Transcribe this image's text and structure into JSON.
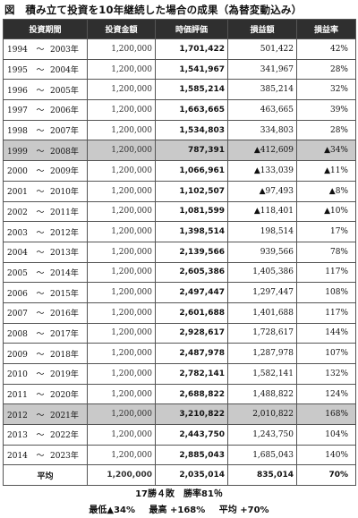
{
  "title": "図　積み立て投資を10年継続した場合の成果（為替変動込み）",
  "headers": [
    "投資期間",
    "投資金額",
    "時価評価",
    "損益額",
    "損益率"
  ],
  "rows": [
    {
      "start": "1994",
      "tilde": "～",
      "end": "2003年",
      "invest": "1,200,000",
      "value": "1,701,422",
      "gain": "501,422",
      "rate": "42%",
      "highlight": false
    },
    {
      "start": "1995",
      "tilde": "～",
      "end": "2004年",
      "invest": "1,200,000",
      "value": "1,541,967",
      "gain": "341,967",
      "rate": "28%",
      "highlight": false
    },
    {
      "start": "1996",
      "tilde": "～",
      "end": "2005年",
      "invest": "1,200,000",
      "value": "1,585,214",
      "gain": "385,214",
      "rate": "32%",
      "highlight": false
    },
    {
      "start": "1997",
      "tilde": "～",
      "end": "2006年",
      "invest": "1,200,000",
      "value": "1,663,665",
      "gain": "463,665",
      "rate": "39%",
      "highlight": false
    },
    {
      "start": "1998",
      "tilde": "～",
      "end": "2007年",
      "invest": "1,200,000",
      "value": "1,534,803",
      "gain": "334,803",
      "rate": "28%",
      "highlight": false
    },
    {
      "start": "1999",
      "tilde": "～",
      "end": "2008年",
      "invest": "1,200,000",
      "value": "787,391",
      "gain": "▲412,609",
      "rate": "▲34%",
      "highlight": true
    },
    {
      "start": "2000",
      "tilde": "～",
      "end": "2009年",
      "invest": "1,200,000",
      "value": "1,066,961",
      "gain": "▲133,039",
      "rate": "▲11%",
      "highlight": false
    },
    {
      "start": "2001",
      "tilde": "～",
      "end": "2010年",
      "invest": "1,200,000",
      "value": "1,102,507",
      "gain": "▲97,493",
      "rate": "▲8%",
      "highlight": false
    },
    {
      "start": "2002",
      "tilde": "～",
      "end": "2011年",
      "invest": "1,200,000",
      "value": "1,081,599",
      "gain": "▲118,401",
      "rate": "▲10%",
      "highlight": false
    },
    {
      "start": "2003",
      "tilde": "～",
      "end": "2012年",
      "invest": "1,200,000",
      "value": "1,398,514",
      "gain": "198,514",
      "rate": "17%",
      "highlight": false
    },
    {
      "start": "2004",
      "tilde": "～",
      "end": "2013年",
      "invest": "1,200,000",
      "value": "2,139,566",
      "gain": "939,566",
      "rate": "78%",
      "highlight": false
    },
    {
      "start": "2005",
      "tilde": "～",
      "end": "2014年",
      "invest": "1,200,000",
      "value": "2,605,386",
      "gain": "1,405,386",
      "rate": "117%",
      "highlight": false
    },
    {
      "start": "2006",
      "tilde": "～",
      "end": "2015年",
      "invest": "1,200,000",
      "value": "2,497,447",
      "gain": "1,297,447",
      "rate": "108%",
      "highlight": false
    },
    {
      "start": "2007",
      "tilde": "～",
      "end": "2016年",
      "invest": "1,200,000",
      "value": "2,601,688",
      "gain": "1,401,688",
      "rate": "117%",
      "highlight": false
    },
    {
      "start": "2008",
      "tilde": "～",
      "end": "2017年",
      "invest": "1,200,000",
      "value": "2,928,617",
      "gain": "1,728,617",
      "rate": "144%",
      "highlight": false
    },
    {
      "start": "2009",
      "tilde": "～",
      "end": "2018年",
      "invest": "1,200,000",
      "value": "2,487,978",
      "gain": "1,287,978",
      "rate": "107%",
      "highlight": false
    },
    {
      "start": "2010",
      "tilde": "～",
      "end": "2019年",
      "invest": "1,200,000",
      "value": "2,782,141",
      "gain": "1,582,141",
      "rate": "132%",
      "highlight": false
    },
    {
      "start": "2011",
      "tilde": "～",
      "end": "2020年",
      "invest": "1,200,000",
      "value": "2,688,822",
      "gain": "1,488,822",
      "rate": "124%",
      "highlight": false
    },
    {
      "start": "2012",
      "tilde": "～",
      "end": "2021年",
      "invest": "1,200,000",
      "value": "3,210,822",
      "gain": "2,010,822",
      "rate": "168%",
      "highlight": true
    },
    {
      "start": "2013",
      "tilde": "～",
      "end": "2022年",
      "invest": "1,200,000",
      "value": "2,443,750",
      "gain": "1,243,750",
      "rate": "104%",
      "highlight": false
    },
    {
      "start": "2014",
      "tilde": "～",
      "end": "2023年",
      "invest": "1,200,000",
      "value": "2,885,043",
      "gain": "1,685,043",
      "rate": "140%",
      "highlight": false
    }
  ],
  "average": {
    "label": "平均",
    "invest": "1,200,000",
    "value": "2,035,014",
    "gain": "835,014",
    "rate": "70%"
  },
  "summary": {
    "record": "17勝４敗　勝率81％",
    "min": "最低▲34%",
    "max": "最高 +168%",
    "avg": "平均 +70%"
  }
}
